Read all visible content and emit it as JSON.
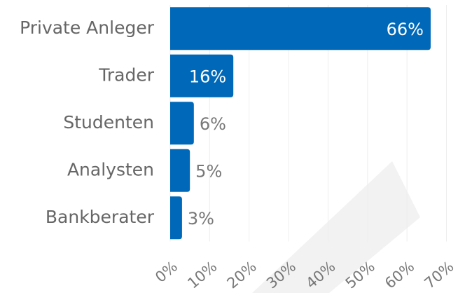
{
  "chart_data": {
    "type": "bar",
    "orientation": "horizontal",
    "categories": [
      "Private Anleger",
      "Trader",
      "Studenten",
      "Analysten",
      "Bankberater"
    ],
    "values": [
      66,
      16,
      6,
      5,
      3
    ],
    "value_labels": [
      "66%",
      "16%",
      "6%",
      "5%",
      "3%"
    ],
    "color": "#0068b8",
    "xlim": [
      0,
      70
    ],
    "xticks": [
      {
        "value": 0,
        "label": "0%"
      },
      {
        "value": 10,
        "label": "10%"
      },
      {
        "value": 20,
        "label": "20%"
      },
      {
        "value": 30,
        "label": "30%"
      },
      {
        "value": 40,
        "label": "40%"
      },
      {
        "value": 50,
        "label": "50%"
      },
      {
        "value": 60,
        "label": "60%"
      },
      {
        "value": 70,
        "label": "70%"
      }
    ],
    "grid": true
  }
}
